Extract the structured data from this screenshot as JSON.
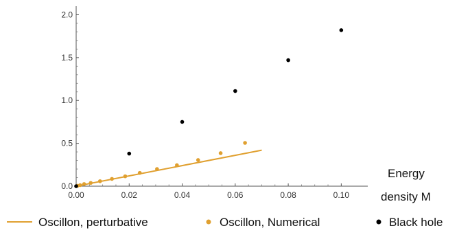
{
  "chart_data": {
    "type": "scatter",
    "title": "",
    "xlabel_line1": "Energy",
    "xlabel_line2": "density M",
    "ylabel": "",
    "xlim": [
      0.0,
      0.11
    ],
    "ylim": [
      0.0,
      2.1
    ],
    "x_ticks": [
      "0.00",
      "0.02",
      "0.04",
      "0.06",
      "0.08",
      "0.10"
    ],
    "y_ticks": [
      "0.0",
      "0.5",
      "1.0",
      "1.5",
      "2.0"
    ],
    "grid": false,
    "legend_position": "bottom",
    "series": [
      {
        "name": "Oscillon, perturbative",
        "kind": "line",
        "color": "#e0a030",
        "x": [
          0.0,
          0.07
        ],
        "y": [
          0.0,
          0.42
        ]
      },
      {
        "name": "Oscillon, Numerical",
        "kind": "points",
        "color": "#e0a030",
        "x": [
          0.0005,
          0.0015,
          0.003,
          0.0055,
          0.009,
          0.0135,
          0.0185,
          0.024,
          0.0305,
          0.038,
          0.046,
          0.0545,
          0.0637
        ],
        "y": [
          0.005,
          0.012,
          0.025,
          0.038,
          0.058,
          0.085,
          0.115,
          0.155,
          0.2,
          0.245,
          0.305,
          0.385,
          0.505
        ]
      },
      {
        "name": "Black hole",
        "kind": "points",
        "color": "#000000",
        "x": [
          0.0,
          0.02,
          0.04,
          0.06,
          0.08,
          0.1
        ],
        "y": [
          0.0,
          0.38,
          0.75,
          1.11,
          1.47,
          1.82
        ]
      }
    ]
  }
}
